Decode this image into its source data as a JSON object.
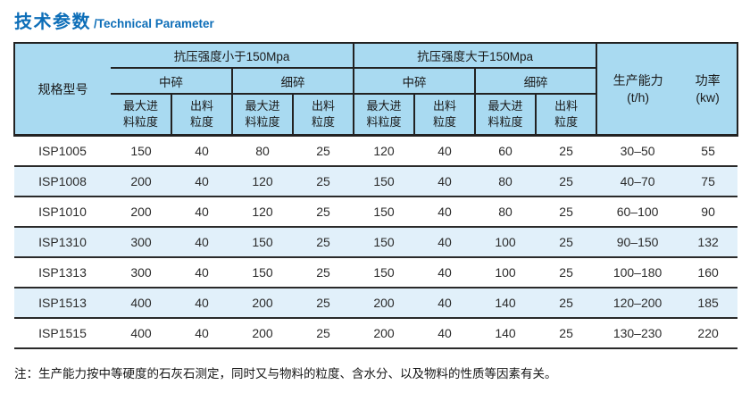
{
  "title": {
    "zh": "技术参数",
    "en": "/Technical Parameter"
  },
  "table": {
    "header": {
      "model": "规格型号",
      "group_lt": "抗压强度小于150Mpa",
      "group_gt": "抗压强度大于150Mpa",
      "medium": "中碎",
      "fine": "细碎",
      "max_feed_line1": "最大进",
      "max_feed_line2": "料粒度",
      "discharge_line1": "出料",
      "discharge_line2": "粒度",
      "capacity_line1": "生产能力",
      "capacity_line2": "(t/h)",
      "power_line1": "功率",
      "power_line2": "(kw)"
    },
    "rows": [
      {
        "model": "ISP1005",
        "values": [
          "150",
          "40",
          "80",
          "25",
          "120",
          "40",
          "60",
          "25",
          "30–50",
          "55"
        ]
      },
      {
        "model": "ISP1008",
        "values": [
          "200",
          "40",
          "120",
          "25",
          "150",
          "40",
          "80",
          "25",
          "40–70",
          "75"
        ]
      },
      {
        "model": "ISP1010",
        "values": [
          "200",
          "40",
          "120",
          "25",
          "150",
          "40",
          "80",
          "25",
          "60–100",
          "90"
        ]
      },
      {
        "model": "ISP1310",
        "values": [
          "300",
          "40",
          "150",
          "25",
          "150",
          "40",
          "100",
          "25",
          "90–150",
          "132"
        ]
      },
      {
        "model": "ISP1313",
        "values": [
          "300",
          "40",
          "150",
          "25",
          "150",
          "40",
          "100",
          "25",
          "100–180",
          "160"
        ]
      },
      {
        "model": "ISP1513",
        "values": [
          "400",
          "40",
          "200",
          "25",
          "200",
          "40",
          "140",
          "25",
          "120–200",
          "185"
        ]
      },
      {
        "model": "ISP1515",
        "values": [
          "400",
          "40",
          "200",
          "25",
          "200",
          "40",
          "140",
          "25",
          "130–230",
          "220"
        ]
      }
    ]
  },
  "note": "注：生产能力按中等硬度的石灰石测定，同时又与物料的粒度、含水分、以及物料的性质等因素有关。",
  "colors": {
    "accent_blue": "#0d6eb8",
    "header_bg": "#a9daf1",
    "alt_row_bg": "#e1f0fa",
    "line": "#222222"
  }
}
